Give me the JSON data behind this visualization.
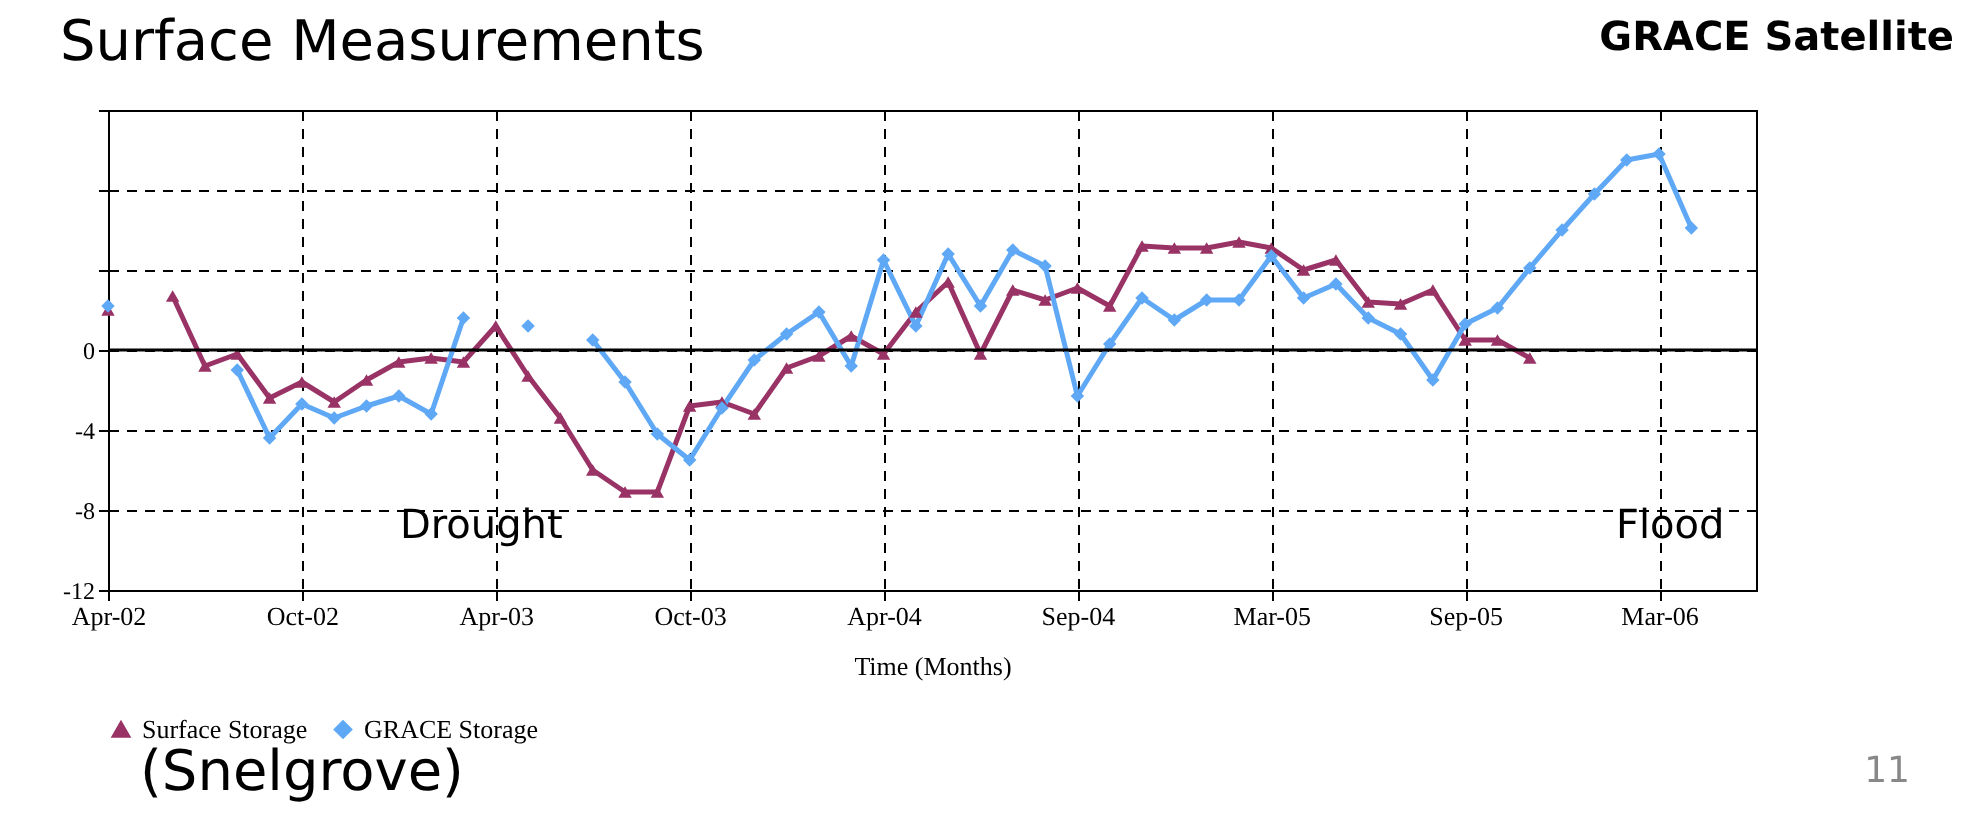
{
  "chart_data": {
    "type": "line",
    "xlabel": "Time (Months)",
    "categories": [
      "Apr-02",
      null,
      null,
      null,
      null,
      null,
      "Oct-02",
      null,
      null,
      null,
      null,
      null,
      "Apr-03",
      null,
      null,
      null,
      null,
      null,
      "Oct-03",
      null,
      null,
      null,
      null,
      null,
      "Apr-04",
      null,
      null,
      null,
      null,
      null,
      "Sep-04",
      null,
      null,
      null,
      null,
      null,
      "Mar-05",
      null,
      null,
      null,
      null,
      null,
      "Sep-05",
      null,
      null,
      null,
      null,
      null,
      "Mar-06",
      null,
      null,
      null
    ],
    "series": [
      {
        "name": "Surface Storage",
        "color": "#993366",
        "marker": "triangle",
        "values": [
          2.0,
          null,
          2.7,
          -0.8,
          -0.2,
          -2.4,
          -1.6,
          -2.6,
          -1.5,
          -0.6,
          -0.4,
          -0.6,
          1.2,
          -1.3,
          -3.4,
          -6.0,
          -7.1,
          -7.1,
          -2.8,
          -2.6,
          -3.2,
          -0.9,
          -0.3,
          0.7,
          -0.2,
          1.9,
          3.4,
          -0.2,
          3.0,
          2.5,
          3.1,
          2.2,
          5.2,
          5.1,
          5.1,
          5.4,
          5.1,
          4.0,
          4.5,
          2.4,
          2.3,
          3.0,
          0.5,
          0.5,
          -0.4,
          null,
          null,
          null,
          null,
          null,
          null,
          null
        ]
      },
      {
        "name": "GRACE Storage",
        "color": "#5fa8f5",
        "marker": "diamond",
        "values": [
          2.2,
          null,
          null,
          null,
          -1.0,
          -4.4,
          -2.7,
          -3.4,
          -2.8,
          -2.3,
          -3.2,
          1.6,
          null,
          1.2,
          null,
          0.5,
          -1.6,
          -4.2,
          -5.5,
          -2.9,
          -0.5,
          0.8,
          1.9,
          -0.8,
          4.5,
          1.2,
          4.8,
          2.2,
          5.0,
          4.2,
          -2.3,
          0.3,
          2.6,
          1.5,
          2.5,
          2.5,
          4.7,
          2.6,
          3.3,
          1.6,
          0.8,
          -1.5,
          1.3,
          2.1,
          4.1,
          6.0,
          7.8,
          9.5,
          9.8,
          6.1,
          null,
          null
        ]
      }
    ],
    "ylim": [
      -12,
      12
    ],
    "yticks": [
      -12,
      -8,
      -4,
      0,
      {
        "value": 4,
        "label": null
      },
      {
        "value": 8,
        "label": null
      },
      {
        "value": 12,
        "label": null
      }
    ],
    "grid": true,
    "ref_lines": [
      {
        "axis": "y",
        "value": 0,
        "color": "#000000",
        "line_style": "solid"
      }
    ],
    "legend": "bottom",
    "line_style": "solid",
    "annotations": [
      "Surface Measurements",
      "GRACE Satellite",
      "(Snelgrove)",
      "11",
      "Drought",
      "Flood"
    ]
  }
}
